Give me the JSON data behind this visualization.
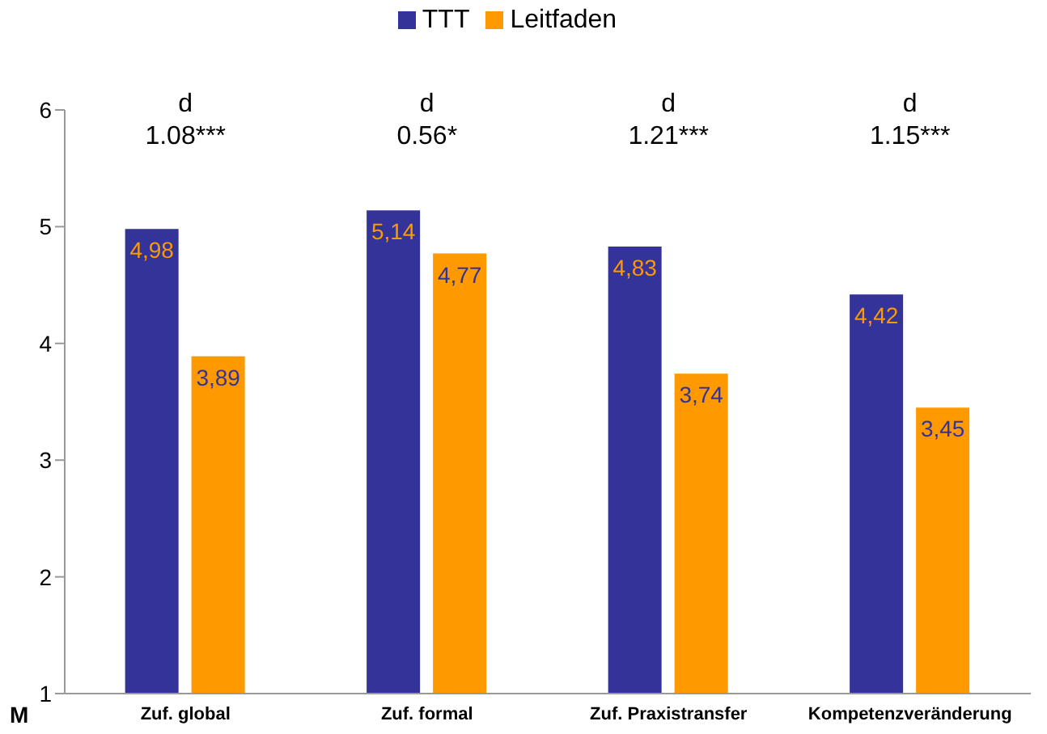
{
  "chart_data": {
    "type": "bar",
    "ylabel": "M",
    "categories": [
      "Zuf. global",
      "Zuf. formal",
      "Zuf. Praxistransfer",
      "Kompetenzveränderung"
    ],
    "series": [
      {
        "name": "TTT",
        "color": "#333399",
        "values": [
          4.98,
          5.14,
          4.83,
          4.42
        ],
        "value_labels": [
          "4,98",
          "5,14",
          "4,83",
          "4,42"
        ]
      },
      {
        "name": "Leitfaden",
        "color": "#ff9900",
        "values": [
          3.89,
          4.77,
          3.74,
          3.45
        ],
        "value_labels": [
          "3,89",
          "4,77",
          "3,74",
          "3,45"
        ]
      }
    ],
    "annotations": [
      "d\n1.08***",
      "d\n0.56*",
      "d\n1.21***",
      "d\n1.15***"
    ],
    "ylim": [
      1,
      6
    ],
    "yticks": [
      1,
      2,
      3,
      4,
      5,
      6
    ],
    "legend": "top"
  }
}
